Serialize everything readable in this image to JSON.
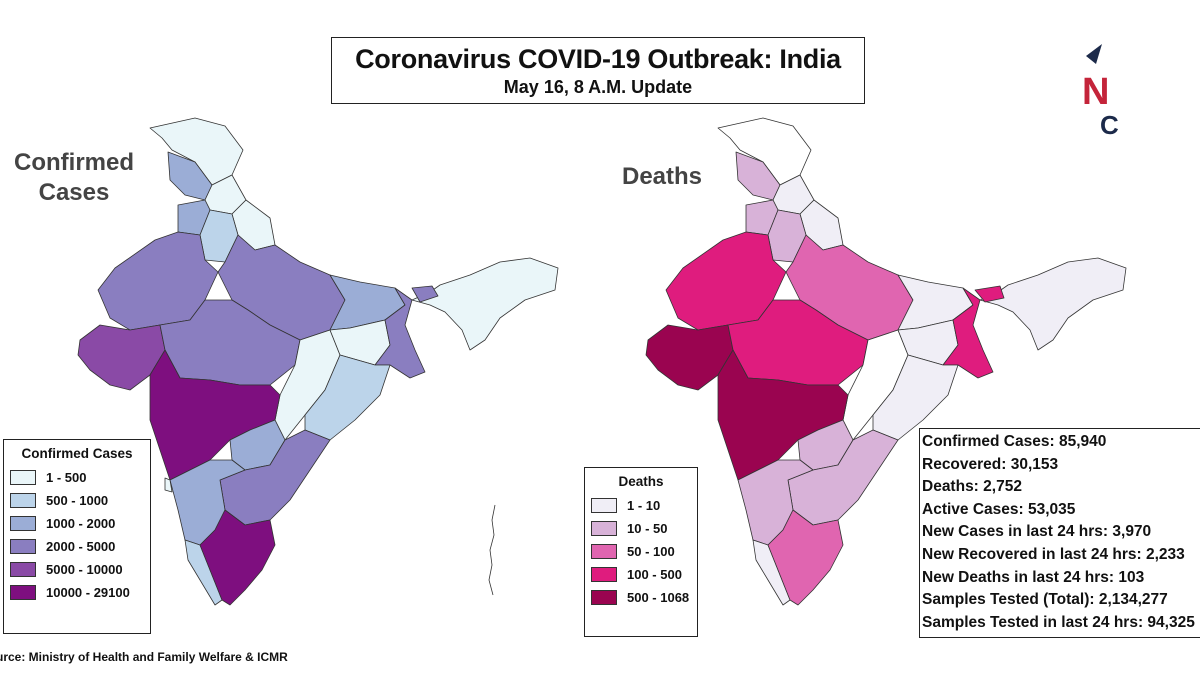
{
  "title": "Coronavirus COVID-19 Outbreak: India",
  "subtitle": "May 16, 8 A.M. Update",
  "labels": {
    "confirmed_map": "Confirmed Cases",
    "deaths_map": "Deaths"
  },
  "logo": {
    "letters": "NC",
    "colors": {
      "n": "#c4243a",
      "c": "#1c2a4a",
      "mark": "#1c2a4a"
    }
  },
  "legend_confirmed": {
    "title": "Confirmed Cases",
    "items": [
      {
        "label": "1 - 500",
        "color": "#eaf6f9"
      },
      {
        "label": "500 - 1000",
        "color": "#bcd4ea"
      },
      {
        "label": "1000 - 2000",
        "color": "#9badd6"
      },
      {
        "label": "2000 - 5000",
        "color": "#8a7ec0"
      },
      {
        "label": "5000 - 10000",
        "color": "#8a4aa6"
      },
      {
        "label": "10000 - 29100",
        "color": "#7e0f7f"
      }
    ]
  },
  "legend_deaths": {
    "title": "Deaths",
    "items": [
      {
        "label": "1 - 10",
        "color": "#f0eef6"
      },
      {
        "label": "10 - 50",
        "color": "#d8b2d8"
      },
      {
        "label": "50 - 100",
        "color": "#e065b0"
      },
      {
        "label": "100 - 500",
        "color": "#df1c7e"
      },
      {
        "label": "500 - 1068",
        "color": "#9a0450"
      }
    ]
  },
  "stats": [
    "Confirmed Cases: 85,940",
    "Recovered: 30,153",
    "Deaths: 2,752",
    "Active Cases:  53,035",
    "New Cases in last 24 hrs: 3,970",
    "New Recovered in last 24 hrs: 2,233",
    "New Deaths in last 24 hrs: 103",
    "Samples Tested (Total):  2,134,277",
    "Samples Tested in last 24 hrs: 94,325"
  ],
  "source": "urce: Ministry of Health and Family Welfare & ICMR"
}
